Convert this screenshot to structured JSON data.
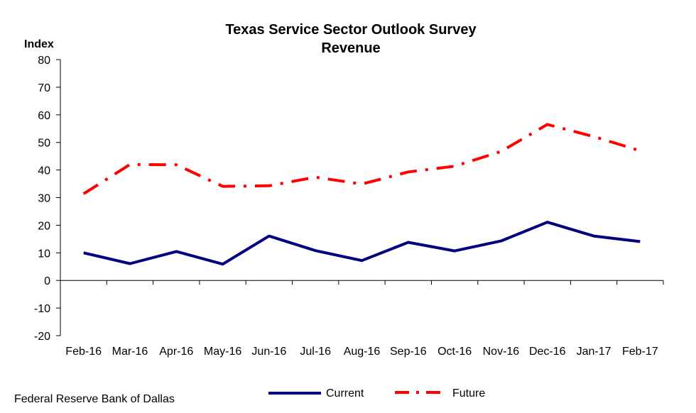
{
  "chart_data": {
    "type": "line",
    "title": "Texas Service Sector  Outlook Survey",
    "subtitle": "Revenue",
    "ylabel": "Index",
    "xlabel": "",
    "categories": [
      "Feb-16",
      "Mar-16",
      "Apr-16",
      "May-16",
      "Jun-16",
      "Jul-16",
      "Aug-16",
      "Sep-16",
      "Oct-16",
      "Nov-16",
      "Dec-16",
      "Jan-17",
      "Feb-17"
    ],
    "ylim": [
      -20,
      80
    ],
    "yticks": [
      "-20",
      "-10",
      "0",
      "10",
      "20",
      "30",
      "40",
      "50",
      "60",
      "70",
      "80"
    ],
    "grid": false,
    "legend_position": "bottom",
    "series": [
      {
        "name": "Current",
        "color": "#000080",
        "style": "solid",
        "values": [
          10.0,
          6.1,
          10.5,
          5.9,
          16.1,
          10.8,
          7.2,
          13.8,
          10.7,
          14.3,
          21.1,
          16.1,
          14.1
        ]
      },
      {
        "name": "Future",
        "color": "#ff0000",
        "style": "dash-dot",
        "values": [
          31.4,
          42.0,
          41.9,
          34.1,
          34.3,
          37.4,
          34.9,
          39.3,
          41.4,
          46.7,
          56.5,
          52.1,
          47.0
        ]
      }
    ]
  },
  "footer": {
    "source": "Federal Reserve Bank of Dallas"
  }
}
